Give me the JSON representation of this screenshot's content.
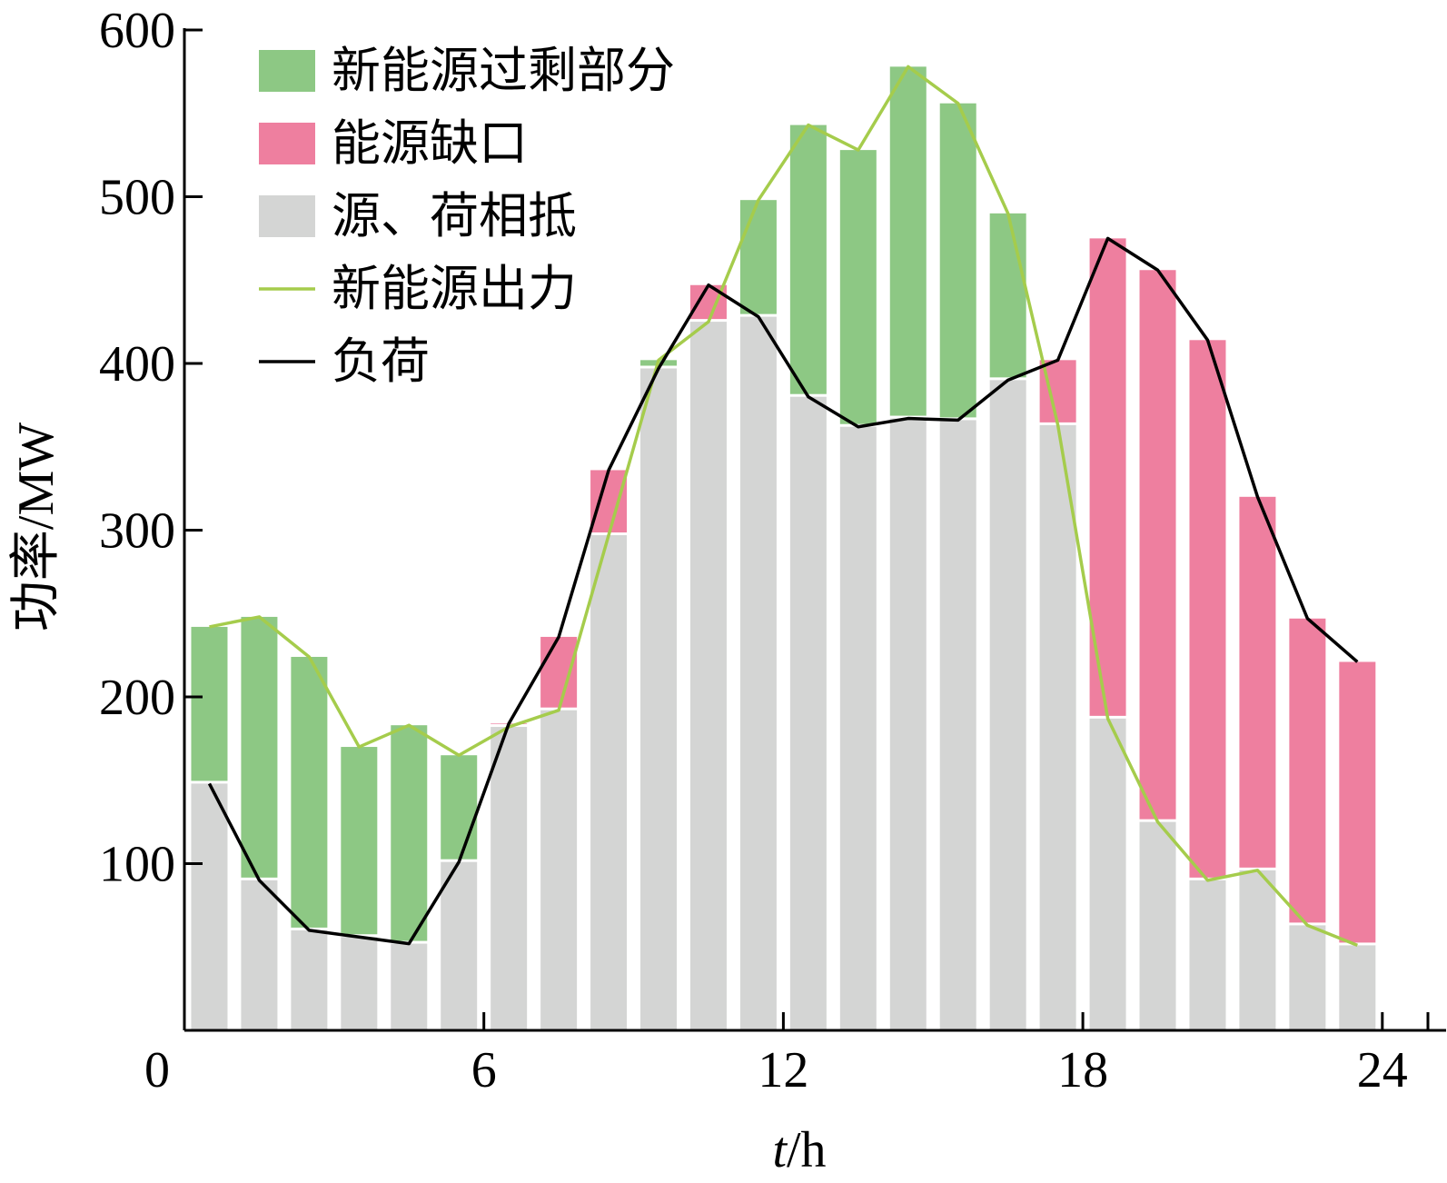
{
  "chart_data": {
    "type": "bar",
    "xlabel_italic": "t",
    "xlabel_unit": "/h",
    "ylabel": "功率/MW",
    "xlim": [
      0,
      25
    ],
    "ylim": [
      0,
      600
    ],
    "x_ticks": [
      0,
      6,
      12,
      18,
      24
    ],
    "y_ticks": [
      100,
      200,
      300,
      400,
      500,
      600
    ],
    "hours": [
      1,
      2,
      3,
      4,
      5,
      6,
      7,
      8,
      9,
      10,
      11,
      12,
      13,
      14,
      15,
      16,
      17,
      18,
      19,
      20,
      21,
      22,
      23,
      24
    ],
    "series": [
      {
        "name": "新能源出力",
        "values": [
          242,
          248,
          224,
          170,
          183,
          165,
          182,
          192,
          297,
          402,
          425,
          498,
          543,
          528,
          578,
          556,
          490,
          363,
          187,
          125,
          90,
          96,
          63,
          51
        ]
      },
      {
        "name": "负荷",
        "values": [
          148,
          90,
          60,
          56,
          52,
          101,
          184,
          236,
          336,
          397,
          447,
          428,
          380,
          362,
          367,
          366,
          390,
          402,
          475,
          456,
          414,
          320,
          247,
          221
        ]
      }
    ],
    "stack_legend": [
      {
        "name": "新能源过剩部分",
        "color": "#8dc884"
      },
      {
        "name": "能源缺口",
        "color": "#ee7f9f"
      },
      {
        "name": "源、荷相抵",
        "color": "#d4d5d4"
      }
    ],
    "line_colors": {
      "renewable": "#a5cc4c",
      "load": "#000000"
    },
    "legend_position": "top-left"
  }
}
